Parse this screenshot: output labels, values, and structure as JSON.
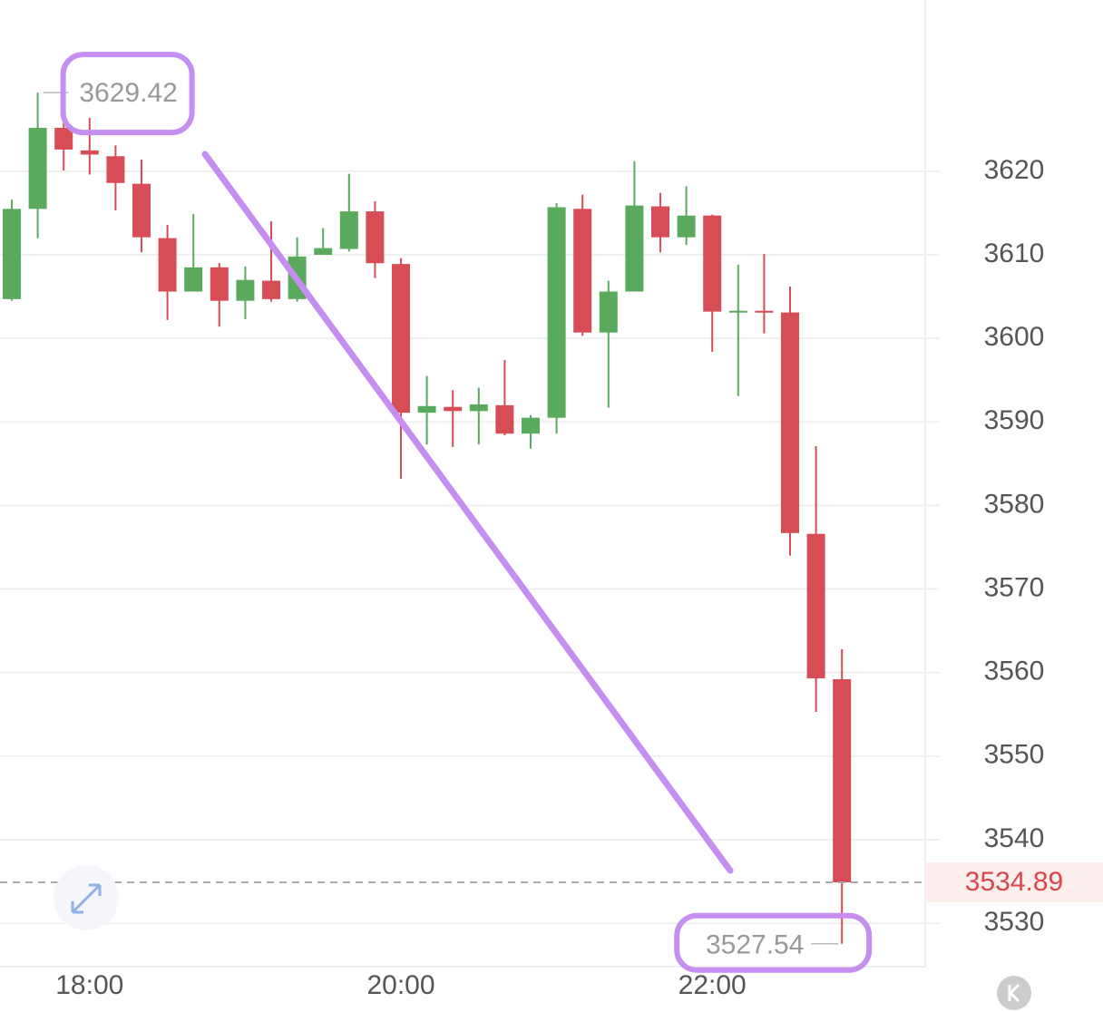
{
  "chart_data": {
    "type": "candlestick",
    "categories": [
      null,
      null,
      null,
      "18:00",
      null,
      null,
      null,
      null,
      null,
      null,
      null,
      null,
      null,
      null,
      null,
      "20:00",
      null,
      null,
      null,
      null,
      null,
      null,
      null,
      null,
      null,
      null,
      null,
      "22:00",
      null,
      null,
      null,
      null,
      null
    ],
    "open": [
      3604.7,
      3615.5,
      3625.2,
      3622.5,
      3621.8,
      3618.5,
      3612.0,
      3605.6,
      3608.5,
      3604.5,
      3606.9,
      3604.7,
      3610.0,
      3610.7,
      3615.2,
      3608.9,
      3591.1,
      3591.8,
      3591.3,
      3592.0,
      3588.6,
      3590.5,
      3615.5,
      3600.7,
      3605.6,
      3615.8,
      3612.1,
      3614.7,
      3603.2,
      3603.3,
      3603.1,
      3576.6,
      3559.2
    ],
    "high": [
      3616.6,
      3629.42,
      3626.6,
      3626.4,
      3623.1,
      3621.4,
      3613.6,
      3614.9,
      3609.0,
      3608.6,
      3614.0,
      3612.1,
      3613.2,
      3619.7,
      3616.4,
      3609.6,
      3595.5,
      3593.8,
      3594.1,
      3597.4,
      3590.8,
      3616.2,
      3617.2,
      3606.9,
      3621.2,
      3617.4,
      3618.2,
      3614.8,
      3608.8,
      3610.1,
      3606.2,
      3587.1,
      3562.8
    ],
    "low": [
      3604.5,
      3612.0,
      3620.1,
      3619.6,
      3615.3,
      3610.3,
      3602.2,
      3605.6,
      3601.4,
      3602.3,
      3604.4,
      3604.4,
      3610.0,
      3610.4,
      3607.2,
      3583.2,
      3587.3,
      3587.0,
      3587.3,
      3588.4,
      3586.8,
      3588.6,
      3600.3,
      3591.7,
      3605.6,
      3610.3,
      3611.2,
      3598.4,
      3593.1,
      3600.6,
      3574.0,
      3555.3,
      3527.54
    ],
    "close": [
      3615.5,
      3625.2,
      3622.6,
      3622.0,
      3618.6,
      3612.1,
      3605.6,
      3608.5,
      3604.5,
      3607.0,
      3604.7,
      3609.8,
      3610.8,
      3615.2,
      3609.0,
      3591.1,
      3591.9,
      3591.3,
      3592.1,
      3588.6,
      3590.5,
      3615.7,
      3600.7,
      3605.6,
      3615.9,
      3612.1,
      3614.7,
      3603.2,
      3603.3,
      3603.1,
      3576.7,
      3559.3,
      3534.89
    ],
    "up_color": "#5aaa5e",
    "down_color": "#d64d55",
    "ylim": [
      3524.8,
      3640.5
    ],
    "yticks": [
      3530,
      3540,
      3550,
      3560,
      3570,
      3580,
      3590,
      3600,
      3610,
      3620
    ],
    "grid": true
  }
}
